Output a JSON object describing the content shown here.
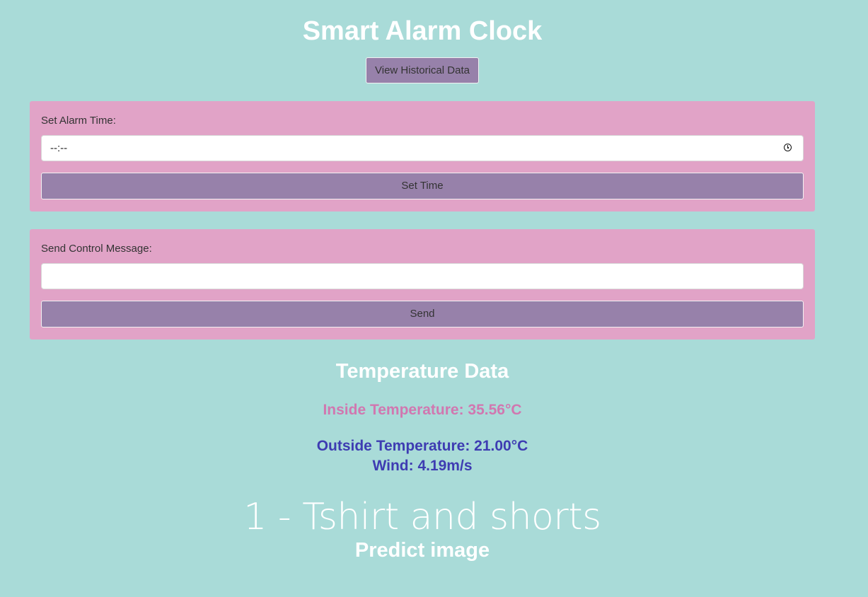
{
  "header": {
    "title": "Smart Alarm Clock",
    "history_button": "View Historical Data"
  },
  "alarm": {
    "label": "Set Alarm Time:",
    "time_value": "--:--",
    "submit_label": "Set Time"
  },
  "control": {
    "label": "Send Control Message:",
    "message_value": "",
    "submit_label": "Send"
  },
  "temperature": {
    "title": "Temperature Data",
    "inside": "Inside Temperature: 35.56°C",
    "outside": "Outside Temperature: 21.00°C",
    "wind": "Wind: 4.19m/s"
  },
  "prediction": {
    "result": "1 - Tshirt and shorts",
    "label": "Predict image"
  },
  "colors": {
    "background": "#a9dbd8",
    "panel": "#e1a3c7",
    "button": "#9781aa",
    "inside_temp": "#d177b0",
    "outside_temp": "#3e3cb2"
  }
}
